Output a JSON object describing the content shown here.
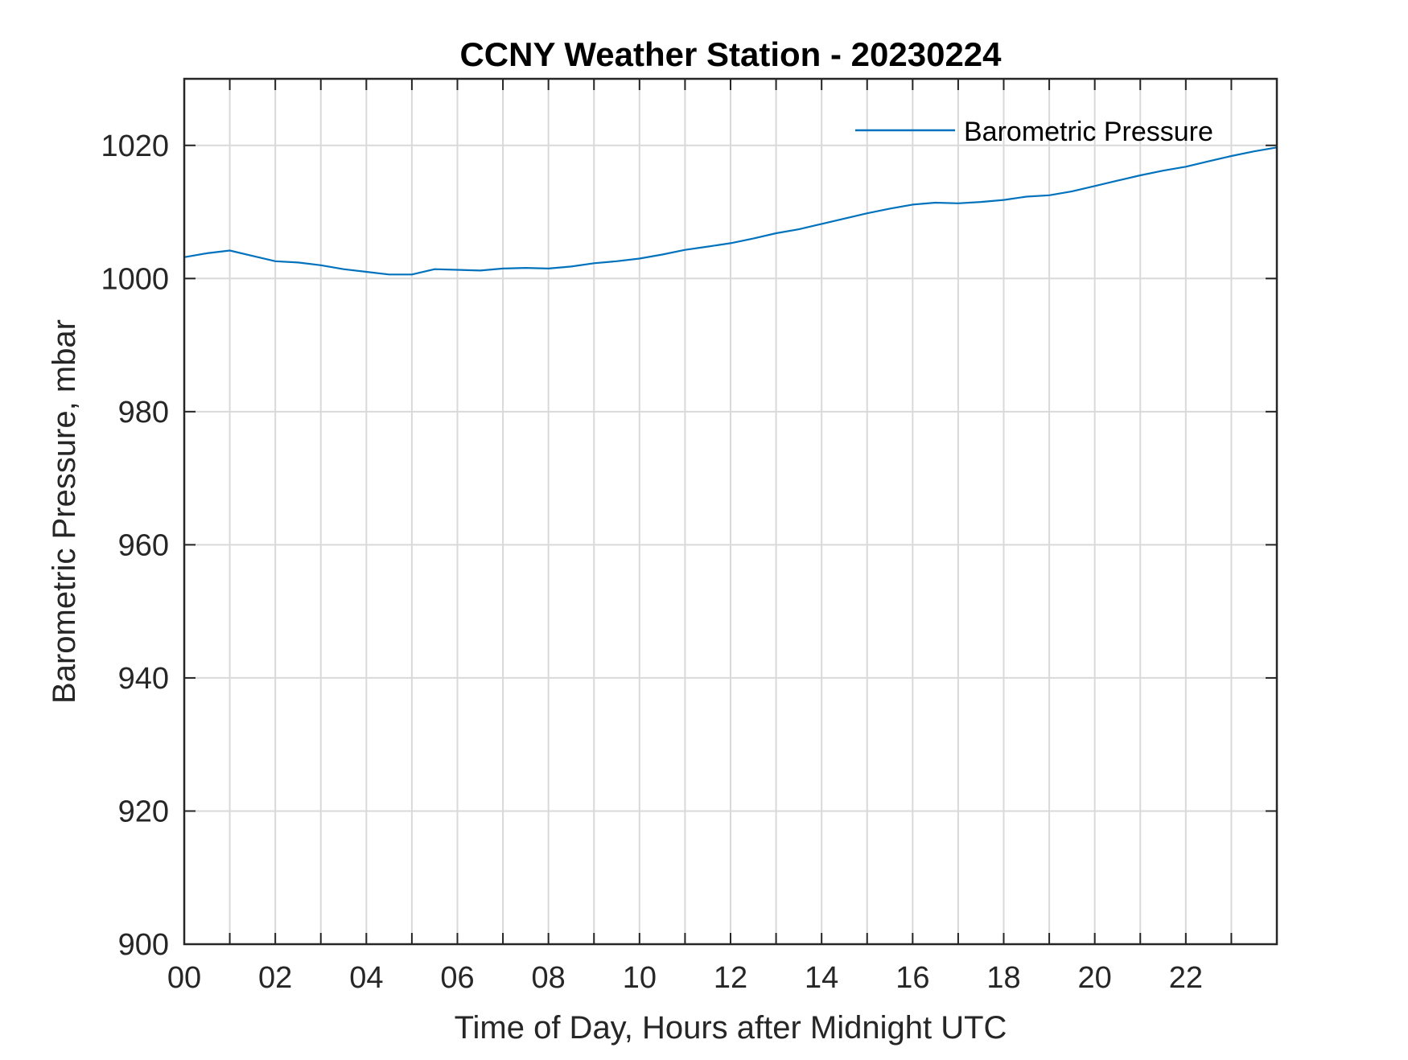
{
  "chart_data": {
    "type": "line",
    "title": "CCNY Weather Station - 20230224",
    "xlabel": "Time of Day, Hours after Midnight UTC",
    "ylabel": "Barometric Pressure, mbar",
    "xlim": [
      0,
      24
    ],
    "ylim": [
      900,
      1030
    ],
    "x_tick_labels": [
      "00",
      "02",
      "04",
      "06",
      "08",
      "10",
      "12",
      "14",
      "16",
      "18",
      "20",
      "22"
    ],
    "y_tick_labels": [
      "900",
      "920",
      "940",
      "960",
      "980",
      "1000",
      "1020"
    ],
    "grid": true,
    "legend_position": "top-right",
    "series": [
      {
        "name": "Barometric Pressure",
        "color": "#0072BD",
        "x": [
          0,
          0.5,
          1.0,
          1.5,
          2.0,
          2.5,
          3.0,
          3.5,
          4.0,
          4.5,
          5.0,
          5.5,
          6.0,
          6.5,
          7.0,
          7.5,
          8.0,
          8.5,
          9.0,
          9.5,
          10.0,
          10.5,
          11.0,
          11.5,
          12.0,
          12.5,
          13.0,
          13.5,
          14.0,
          14.5,
          15.0,
          15.5,
          16.0,
          16.5,
          17.0,
          17.5,
          18.0,
          18.5,
          19.0,
          19.5,
          20.0,
          20.5,
          21.0,
          21.5,
          22.0,
          22.5,
          23.0,
          23.5,
          24.0
        ],
        "values": [
          1003.2,
          1003.8,
          1004.2,
          1003.4,
          1002.6,
          1002.4,
          1002.0,
          1001.4,
          1001.0,
          1000.6,
          1000.6,
          1001.4,
          1001.3,
          1001.2,
          1001.5,
          1001.6,
          1001.5,
          1001.8,
          1002.3,
          1002.6,
          1003.0,
          1003.6,
          1004.3,
          1004.8,
          1005.3,
          1006.0,
          1006.8,
          1007.4,
          1008.2,
          1009.0,
          1009.8,
          1010.5,
          1011.1,
          1011.4,
          1011.3,
          1011.5,
          1011.8,
          1012.3,
          1012.5,
          1013.1,
          1013.9,
          1014.7,
          1015.5,
          1016.2,
          1016.8,
          1017.6,
          1018.4,
          1019.1,
          1019.7
        ]
      }
    ]
  }
}
